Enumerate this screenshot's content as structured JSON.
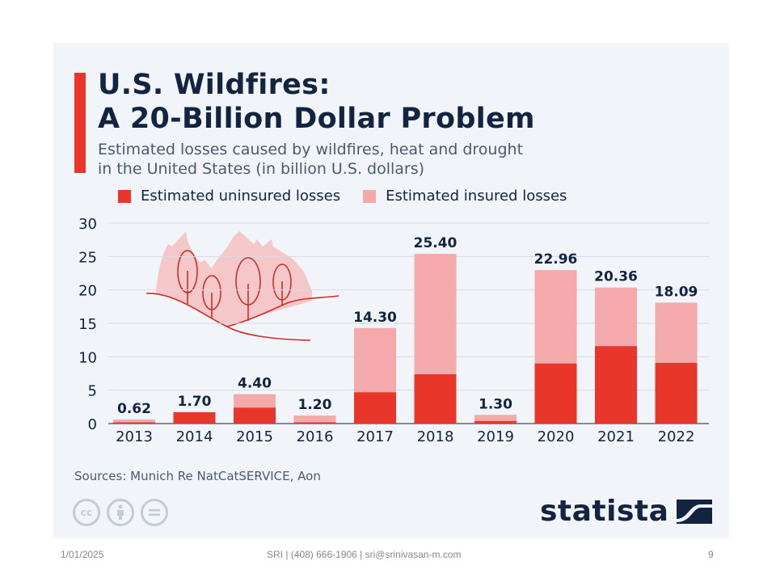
{
  "title_line1": "U.S. Wildfires:",
  "title_line2": "A 20-Billion Dollar Problem",
  "subtitle_line1": "Estimated losses caused by wildfires, heat and drought",
  "subtitle_line2": "in the United States (in billion U.S. dollars)",
  "sources": "Sources: Munich Re NatCatSERVICE, Aon",
  "cc_icons": [
    "cc-icon",
    "attribution-icon",
    "no-derivatives-icon"
  ],
  "cc_label": "cc",
  "logo": "statista",
  "colors": {
    "uninsured": "#e8372a",
    "insured": "#f4a9ab",
    "title": "#12243f",
    "accent": "#e8372a",
    "grid": "#d4dbe2",
    "illustration_fill": "#f5c7c8",
    "illustration_stroke": "#c8302a"
  },
  "footer": {
    "date": "1/01/2025",
    "center": "SRI | (408) 666-1906 | sri@srinivasan-m.com",
    "page": "9"
  },
  "chart_data": {
    "type": "bar",
    "stacked": true,
    "title": "U.S. Wildfires: A 20-Billion Dollar Problem",
    "subtitle": "Estimated losses caused by wildfires, heat and drought in the United States (in billion U.S. dollars)",
    "xlabel": "",
    "ylabel": "",
    "ylim": [
      0,
      30
    ],
    "yticks": [
      0,
      5,
      10,
      15,
      20,
      25,
      30
    ],
    "grid": true,
    "legend_position": "top",
    "categories": [
      "2013",
      "2014",
      "2015",
      "2016",
      "2017",
      "2018",
      "2019",
      "2020",
      "2021",
      "2022"
    ],
    "totals": [
      0.62,
      1.7,
      4.4,
      1.2,
      14.3,
      25.4,
      1.3,
      22.96,
      20.36,
      18.09
    ],
    "total_labels": [
      "0.62",
      "1.70",
      "4.40",
      "1.20",
      "14.30",
      "25.40",
      "1.30",
      "22.96",
      "20.36",
      "18.09"
    ],
    "series": [
      {
        "name": "Estimated uninsured losses",
        "values": [
          0.2,
          1.7,
          2.4,
          0.2,
          4.7,
          7.4,
          0.4,
          9.0,
          11.6,
          9.1
        ]
      },
      {
        "name": "Estimated insured losses",
        "values": [
          0.42,
          0.0,
          2.0,
          1.0,
          9.6,
          18.0,
          0.9,
          13.96,
          8.76,
          8.99
        ]
      }
    ]
  }
}
